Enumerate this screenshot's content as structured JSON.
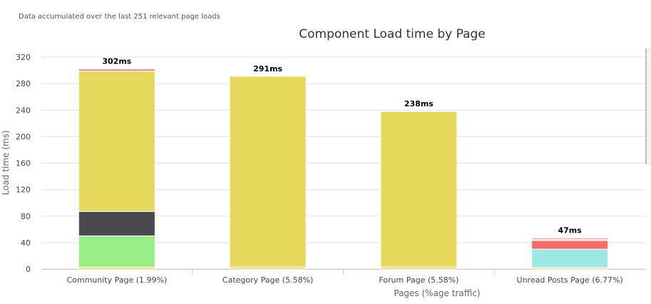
{
  "note": "Data accumulated over the last 251 relevant page loads",
  "chart_data": {
    "type": "bar",
    "stacked": true,
    "title": "Component Load time by Page",
    "xlabel": "Pages (%age traffic)",
    "ylabel": "Load time (ms)",
    "ylim": [
      0,
      320
    ],
    "yticks": [
      0,
      40,
      80,
      120,
      160,
      200,
      240,
      280,
      320
    ],
    "grid": true,
    "categories": [
      "Community Page (1.99%)",
      "Category Page (5.58%)",
      "Forum Page (5.58%)",
      "Unread Posts Page (6.77%)"
    ],
    "totals_labels": [
      "302ms",
      "291ms",
      "238ms",
      "47ms"
    ],
    "totals": [
      302,
      291,
      238,
      47
    ],
    "series": [
      {
        "color": "#e5d85c",
        "values": [
          3,
          3,
          3,
          2
        ]
      },
      {
        "color": "#98ee84",
        "values": [
          47,
          0,
          0,
          0
        ]
      },
      {
        "color": "#9ee8e3",
        "values": [
          0,
          0,
          0,
          28
        ]
      },
      {
        "color": "#f56b6b",
        "values": [
          0,
          0,
          0,
          13
        ]
      },
      {
        "color": "#4a494f",
        "values": [
          37,
          0,
          0,
          0
        ]
      },
      {
        "color": "#e5d85c",
        "values": [
          212,
          288,
          235,
          2
        ]
      },
      {
        "color": "#e07aa0",
        "values": [
          3,
          0,
          0,
          2
        ]
      }
    ]
  }
}
